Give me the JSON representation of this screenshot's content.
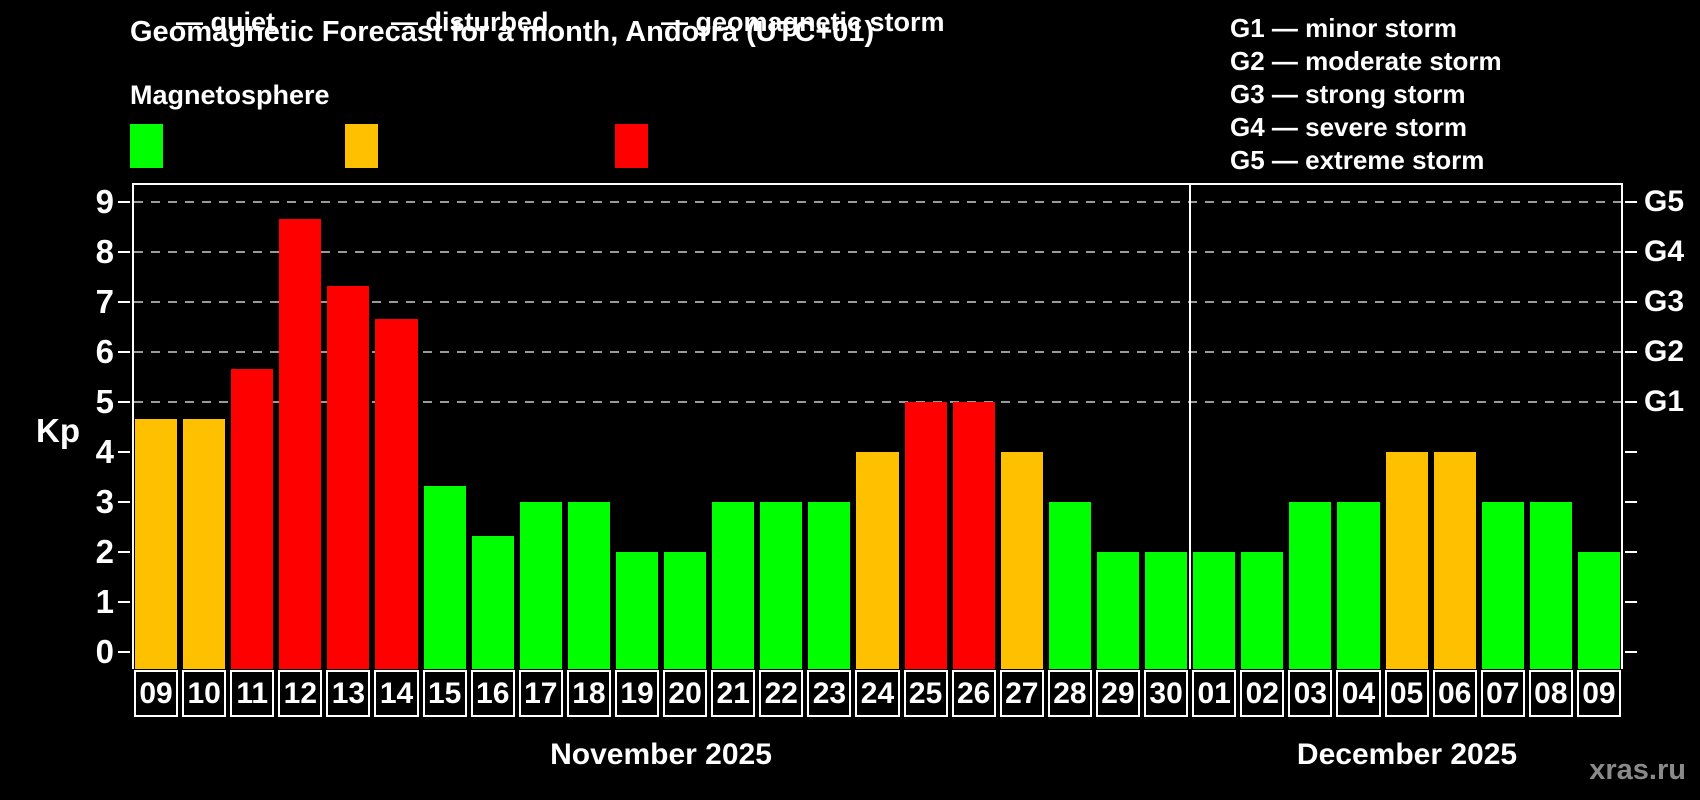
{
  "page": {
    "title": "Geomagnetic Forecast for a month, Andorra (UTC+01)",
    "subtitle": "Magnetosphere",
    "watermark": "xras.ru"
  },
  "colors": {
    "quiet": "#00ff00",
    "disturbed": "#ffc000",
    "storm": "#ff0000",
    "grid": "#9a9a9a",
    "axis": "#ffffff"
  },
  "legend": [
    {
      "key": "quiet",
      "label": "— quiet"
    },
    {
      "key": "disturbed",
      "label": "— disturbed"
    },
    {
      "key": "storm",
      "label": "— geomagnetic storm"
    }
  ],
  "g_legend": [
    "G1 — minor storm",
    "G2 — moderate storm",
    "G3 — strong storm",
    "G4 — severe storm",
    "G5 — extreme storm"
  ],
  "chart_data": {
    "type": "bar",
    "ylabel": "Kp",
    "ylim": [
      -0.35,
      9.4
    ],
    "y_ticks": [
      0,
      1,
      2,
      3,
      4,
      5,
      6,
      7,
      8,
      9
    ],
    "gridlines_kp": [
      5,
      6,
      7,
      8,
      9
    ],
    "right_axis": [
      {
        "kp": 5,
        "label": "G1"
      },
      {
        "kp": 6,
        "label": "G2"
      },
      {
        "kp": 7,
        "label": "G3"
      },
      {
        "kp": 8,
        "label": "G4"
      },
      {
        "kp": 9,
        "label": "G5"
      }
    ],
    "months": [
      {
        "label": "November 2025",
        "days": [
          {
            "day": "09",
            "kp": 4.67,
            "status": "disturbed"
          },
          {
            "day": "10",
            "kp": 4.67,
            "status": "disturbed"
          },
          {
            "day": "11",
            "kp": 5.67,
            "status": "storm"
          },
          {
            "day": "12",
            "kp": 8.67,
            "status": "storm"
          },
          {
            "day": "13",
            "kp": 7.33,
            "status": "storm"
          },
          {
            "day": "14",
            "kp": 6.67,
            "status": "storm"
          },
          {
            "day": "15",
            "kp": 3.33,
            "status": "quiet"
          },
          {
            "day": "16",
            "kp": 2.33,
            "status": "quiet"
          },
          {
            "day": "17",
            "kp": 3,
            "status": "quiet"
          },
          {
            "day": "18",
            "kp": 3,
            "status": "quiet"
          },
          {
            "day": "19",
            "kp": 2,
            "status": "quiet"
          },
          {
            "day": "20",
            "kp": 2,
            "status": "quiet"
          },
          {
            "day": "21",
            "kp": 3,
            "status": "quiet"
          },
          {
            "day": "22",
            "kp": 3,
            "status": "quiet"
          },
          {
            "day": "23",
            "kp": 3,
            "status": "quiet"
          },
          {
            "day": "24",
            "kp": 4,
            "status": "disturbed"
          },
          {
            "day": "25",
            "kp": 5,
            "status": "storm"
          },
          {
            "day": "26",
            "kp": 5,
            "status": "storm"
          },
          {
            "day": "27",
            "kp": 4,
            "status": "disturbed"
          },
          {
            "day": "28",
            "kp": 3,
            "status": "quiet"
          },
          {
            "day": "29",
            "kp": 2,
            "status": "quiet"
          },
          {
            "day": "30",
            "kp": 2,
            "status": "quiet"
          }
        ]
      },
      {
        "label": "December 2025",
        "days": [
          {
            "day": "01",
            "kp": 2,
            "status": "quiet"
          },
          {
            "day": "02",
            "kp": 2,
            "status": "quiet"
          },
          {
            "day": "03",
            "kp": 3,
            "status": "quiet"
          },
          {
            "day": "04",
            "kp": 3,
            "status": "quiet"
          },
          {
            "day": "05",
            "kp": 4,
            "status": "disturbed"
          },
          {
            "day": "06",
            "kp": 4,
            "status": "disturbed"
          },
          {
            "day": "07",
            "kp": 3,
            "status": "quiet"
          },
          {
            "day": "08",
            "kp": 3,
            "status": "quiet"
          },
          {
            "day": "09",
            "kp": 2,
            "status": "quiet"
          }
        ]
      }
    ]
  }
}
